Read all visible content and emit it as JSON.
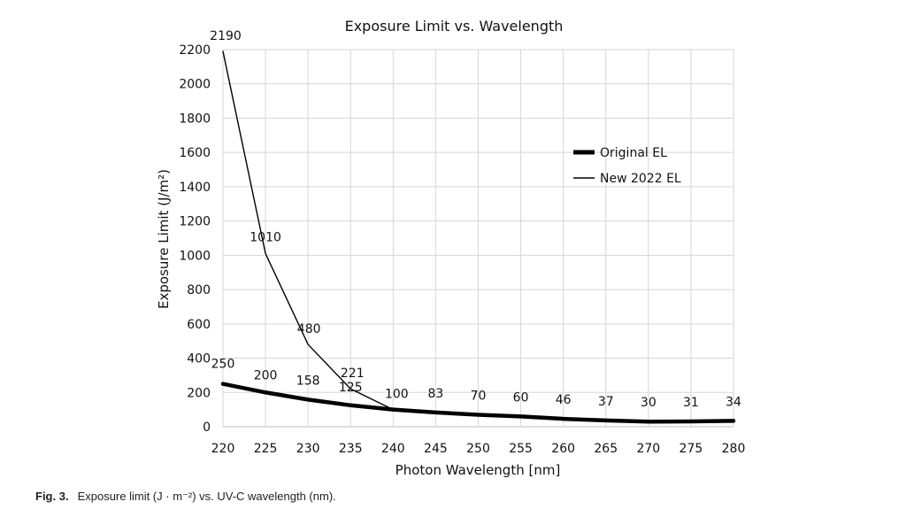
{
  "chart_data": {
    "type": "line",
    "title": "Exposure Limit vs. Wavelength",
    "xlabel": "Photon Wavelength [nm]",
    "ylabel": "Exposure Limit (J/m²)",
    "xlim": [
      220,
      280
    ],
    "ylim": [
      0,
      2200
    ],
    "x_ticks": [
      220,
      225,
      230,
      235,
      240,
      245,
      250,
      255,
      260,
      265,
      270,
      275,
      280
    ],
    "y_ticks": [
      0,
      200,
      400,
      600,
      800,
      1000,
      1200,
      1400,
      1600,
      1800,
      2000,
      2200
    ],
    "grid": true,
    "legend_position": "right",
    "series": [
      {
        "name": "Original EL",
        "line_style": "thick",
        "x": [
          220,
          225,
          230,
          235,
          240,
          245,
          250,
          255,
          260,
          265,
          270,
          275,
          280
        ],
        "y": [
          250,
          200,
          158,
          125,
          100,
          83,
          70,
          60,
          46,
          37,
          30,
          31,
          34
        ],
        "labels": [
          "250",
          "200",
          "158",
          "125",
          "100",
          "83",
          "70",
          "60",
          "46",
          "37",
          "30",
          "31",
          "34"
        ]
      },
      {
        "name": "New 2022 EL",
        "line_style": "thin",
        "x": [
          220,
          225,
          230,
          235,
          240
        ],
        "y": [
          2190,
          1010,
          480,
          221,
          100
        ],
        "labels": [
          "2190",
          "1010",
          "480",
          "221",
          ""
        ]
      }
    ]
  },
  "caption": {
    "label": "Fig. 3.",
    "text": "Exposure limit (J · m⁻²) vs. UV-C wavelength (nm)."
  }
}
